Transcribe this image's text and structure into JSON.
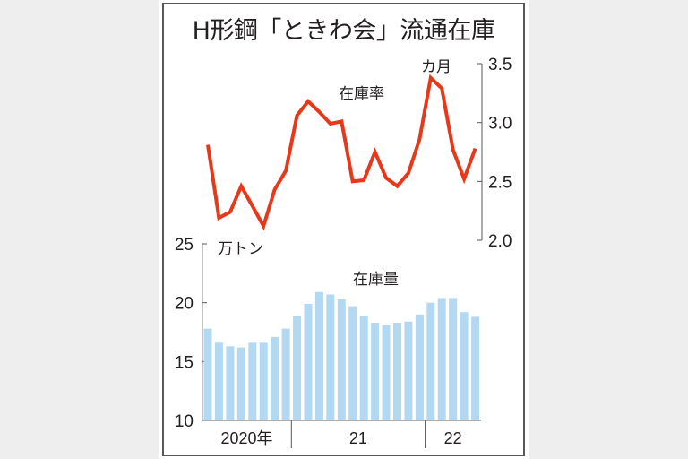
{
  "title": "H形鋼「ときわ会」流通在庫",
  "chart_data": [
    {
      "type": "line",
      "title": "在庫率",
      "series_label": "在庫率",
      "unit": "カ月",
      "ylabel": "カ月",
      "y_axis_position": "right",
      "ylim": [
        2.0,
        3.5
      ],
      "yticks": [
        "3.5",
        "3.0",
        "2.5",
        "2.0"
      ],
      "color": "#e8381a",
      "x": [
        "2020-05",
        "2020-06",
        "2020-07",
        "2020-08",
        "2020-09",
        "2020-10",
        "2020-11",
        "2020-12",
        "2021-01",
        "2021-02",
        "2021-03",
        "2021-04",
        "2021-05",
        "2021-06",
        "2021-07",
        "2021-08",
        "2021-09",
        "2021-10",
        "2021-11",
        "2021-12",
        "2022-01",
        "2022-02",
        "2022-03",
        "2022-04",
        "2022-05"
      ],
      "values": [
        2.81,
        2.19,
        2.24,
        2.46,
        2.29,
        2.12,
        2.43,
        2.59,
        3.06,
        3.18,
        3.09,
        2.99,
        3.01,
        2.5,
        2.51,
        2.75,
        2.53,
        2.46,
        2.57,
        2.86,
        3.38,
        3.29,
        2.77,
        2.52,
        2.78
      ],
      "grid": false
    },
    {
      "type": "bar",
      "title": "在庫量",
      "series_label": "在庫量",
      "unit": "万トン",
      "ylabel": "万トン",
      "y_axis_position": "left",
      "ylim": [
        10,
        25
      ],
      "yticks": [
        "25",
        "20",
        "15",
        "10"
      ],
      "color": "#b3d8f2",
      "x": [
        "2020-05",
        "2020-06",
        "2020-07",
        "2020-08",
        "2020-09",
        "2020-10",
        "2020-11",
        "2020-12",
        "2021-01",
        "2021-02",
        "2021-03",
        "2021-04",
        "2021-05",
        "2021-06",
        "2021-07",
        "2021-08",
        "2021-09",
        "2021-10",
        "2021-11",
        "2021-12",
        "2022-01",
        "2022-02",
        "2022-03",
        "2022-04",
        "2022-05"
      ],
      "values": [
        17.8,
        16.6,
        16.3,
        16.2,
        16.6,
        16.6,
        17.1,
        17.8,
        18.9,
        19.9,
        20.9,
        20.7,
        20.3,
        19.7,
        18.9,
        18.3,
        18.1,
        18.3,
        18.4,
        19.0,
        20.0,
        20.4,
        20.4,
        19.2,
        18.8
      ],
      "grid": false
    }
  ],
  "x_axis": {
    "year_labels": [
      "2020年",
      "21",
      "22"
    ],
    "year_start_index": [
      0,
      8,
      20
    ]
  },
  "labels": {
    "rate_label": "在庫率",
    "rate_unit": "カ月",
    "volume_label": "在庫量",
    "volume_unit": "万トン"
  }
}
